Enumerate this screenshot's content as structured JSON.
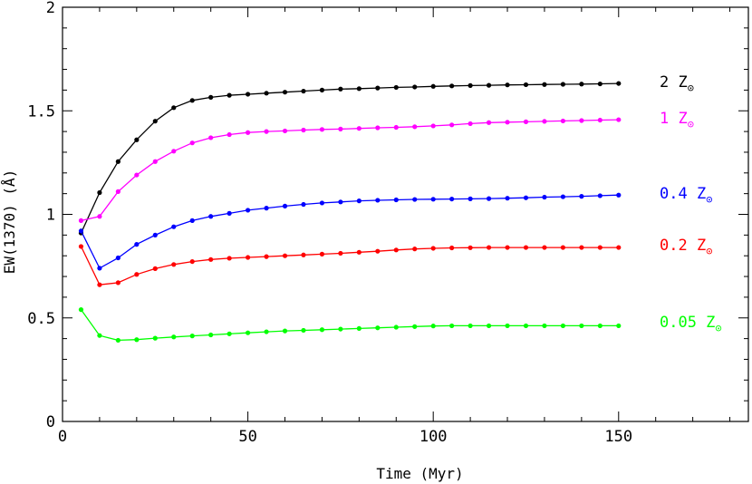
{
  "chart_data": {
    "type": "line",
    "title": "",
    "xlabel": "Time (Myr)",
    "ylabel": "EW(1370) (Å)",
    "xlim": [
      0,
      185
    ],
    "ylim": [
      0,
      2
    ],
    "x_ticks": [
      0,
      50,
      100,
      150
    ],
    "y_ticks": [
      0,
      0.5,
      1,
      1.5,
      2
    ],
    "x_tick_labels": [
      "0",
      "50",
      "100",
      "150"
    ],
    "y_tick_labels": [
      "0",
      "0.5",
      "1",
      "1.5",
      "2"
    ],
    "grid": false,
    "x": [
      5,
      10,
      15,
      20,
      25,
      30,
      35,
      40,
      45,
      50,
      55,
      60,
      65,
      70,
      75,
      80,
      85,
      90,
      95,
      100,
      105,
      110,
      115,
      120,
      125,
      130,
      135,
      140,
      145,
      150
    ],
    "series": [
      {
        "name": "2 Z",
        "color": "#000000",
        "values": [
          0.91,
          1.105,
          1.255,
          1.36,
          1.45,
          1.515,
          1.55,
          1.565,
          1.575,
          1.58,
          1.585,
          1.59,
          1.595,
          1.6,
          1.605,
          1.607,
          1.61,
          1.613,
          1.615,
          1.618,
          1.62,
          1.622,
          1.623,
          1.625,
          1.626,
          1.627,
          1.628,
          1.629,
          1.63,
          1.632
        ]
      },
      {
        "name": "1 Z",
        "color": "#ff00ff",
        "values": [
          0.97,
          0.99,
          1.11,
          1.19,
          1.255,
          1.305,
          1.345,
          1.37,
          1.385,
          1.395,
          1.4,
          1.403,
          1.407,
          1.41,
          1.412,
          1.415,
          1.418,
          1.42,
          1.423,
          1.427,
          1.432,
          1.438,
          1.443,
          1.445,
          1.447,
          1.449,
          1.451,
          1.453,
          1.455,
          1.457
        ]
      },
      {
        "name": "0.4 Z",
        "color": "#0000ff",
        "values": [
          0.92,
          0.74,
          0.79,
          0.855,
          0.9,
          0.94,
          0.97,
          0.99,
          1.005,
          1.02,
          1.03,
          1.04,
          1.048,
          1.055,
          1.06,
          1.065,
          1.068,
          1.07,
          1.072,
          1.073,
          1.074,
          1.075,
          1.076,
          1.078,
          1.08,
          1.083,
          1.085,
          1.087,
          1.09,
          1.093
        ]
      },
      {
        "name": "0.2 Z",
        "color": "#ff0000",
        "values": [
          0.845,
          0.66,
          0.67,
          0.71,
          0.738,
          0.758,
          0.772,
          0.782,
          0.788,
          0.792,
          0.796,
          0.8,
          0.804,
          0.808,
          0.812,
          0.817,
          0.822,
          0.828,
          0.833,
          0.836,
          0.838,
          0.839,
          0.84,
          0.84,
          0.84,
          0.84,
          0.84,
          0.84,
          0.84,
          0.84
        ]
      },
      {
        "name": "0.05 Z",
        "color": "#00ff00",
        "values": [
          0.54,
          0.415,
          0.392,
          0.395,
          0.402,
          0.408,
          0.413,
          0.418,
          0.423,
          0.428,
          0.433,
          0.437,
          0.44,
          0.443,
          0.446,
          0.449,
          0.452,
          0.455,
          0.458,
          0.461,
          0.462,
          0.462,
          0.462,
          0.462,
          0.462,
          0.462,
          0.462,
          0.462,
          0.462,
          0.462
        ]
      }
    ],
    "series_labels": [
      {
        "text": "2 Z",
        "suffix": "⊙",
        "color": "#000000"
      },
      {
        "text": "1 Z",
        "suffix": "⊙",
        "color": "#ff00ff"
      },
      {
        "text": "0.4 Z",
        "suffix": "⊙",
        "color": "#0000ff"
      },
      {
        "text": "0.2 Z",
        "suffix": "⊙",
        "color": "#ff0000"
      },
      {
        "text": "0.05 Z",
        "suffix": "⊙",
        "color": "#00ff00"
      }
    ]
  }
}
